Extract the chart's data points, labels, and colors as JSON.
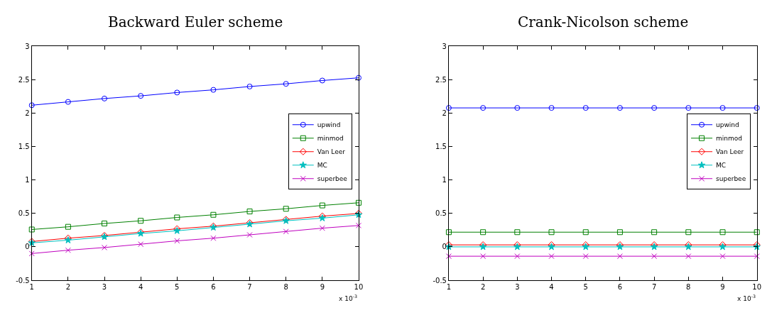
{
  "chart_data": [
    {
      "type": "line",
      "title": "Backward Euler scheme",
      "x": [
        1,
        2,
        3,
        4,
        5,
        6,
        7,
        8,
        9,
        10
      ],
      "xlim": [
        1,
        10
      ],
      "xticks": [
        1,
        2,
        3,
        4,
        5,
        6,
        7,
        8,
        9,
        10
      ],
      "ylim": [
        -0.5,
        3
      ],
      "yticks": [
        -0.5,
        0,
        0.5,
        1,
        1.5,
        2,
        2.5,
        3
      ],
      "grid": false,
      "legend": "right",
      "annotations": [
        "x 10$^{-3}$"
      ],
      "series": [
        {
          "name": "upwind",
          "color": "#0000ff",
          "marker": "circle",
          "values": [
            2.12,
            2.17,
            2.22,
            2.26,
            2.31,
            2.35,
            2.4,
            2.44,
            2.49,
            2.53
          ]
        },
        {
          "name": "minmod",
          "color": "#008000",
          "marker": "square",
          "values": [
            0.26,
            0.3,
            0.35,
            0.39,
            0.44,
            0.48,
            0.53,
            0.57,
            0.62,
            0.66
          ]
        },
        {
          "name": "Van Leer",
          "color": "#ff0000",
          "marker": "diamond",
          "values": [
            0.08,
            0.13,
            0.17,
            0.22,
            0.27,
            0.31,
            0.36,
            0.41,
            0.46,
            0.5
          ]
        },
        {
          "name": "MC",
          "color": "#00bfbf",
          "marker": "star",
          "values": [
            0.06,
            0.1,
            0.15,
            0.2,
            0.24,
            0.29,
            0.34,
            0.39,
            0.43,
            0.48
          ]
        },
        {
          "name": "superbee",
          "color": "#bf00bf",
          "marker": "cross",
          "values": [
            -0.1,
            -0.05,
            -0.01,
            0.04,
            0.09,
            0.13,
            0.18,
            0.23,
            0.28,
            0.32
          ]
        }
      ]
    },
    {
      "type": "line",
      "title": "Crank-Nicolson scheme",
      "x": [
        1,
        2,
        3,
        4,
        5,
        6,
        7,
        8,
        9,
        10
      ],
      "xlim": [
        1,
        10
      ],
      "xticks": [
        1,
        2,
        3,
        4,
        5,
        6,
        7,
        8,
        9,
        10
      ],
      "ylim": [
        -0.5,
        3
      ],
      "yticks": [
        -0.5,
        0,
        0.5,
        1,
        1.5,
        2,
        2.5,
        3
      ],
      "grid": false,
      "legend": "right",
      "annotations": [
        "x 10$^{-3}$"
      ],
      "series": [
        {
          "name": "upwind",
          "color": "#0000ff",
          "marker": "circle",
          "values": [
            2.08,
            2.08,
            2.08,
            2.08,
            2.08,
            2.08,
            2.08,
            2.08,
            2.08,
            2.08
          ]
        },
        {
          "name": "minmod",
          "color": "#008000",
          "marker": "square",
          "values": [
            0.22,
            0.22,
            0.22,
            0.22,
            0.22,
            0.22,
            0.22,
            0.22,
            0.22,
            0.22
          ]
        },
        {
          "name": "Van Leer",
          "color": "#ff0000",
          "marker": "diamond",
          "values": [
            0.03,
            0.03,
            0.03,
            0.03,
            0.03,
            0.03,
            0.03,
            0.03,
            0.03,
            0.03
          ]
        },
        {
          "name": "MC",
          "color": "#00bfbf",
          "marker": "star",
          "values": [
            0.0,
            0.0,
            0.0,
            0.0,
            0.0,
            0.0,
            0.0,
            0.0,
            0.0,
            0.0
          ]
        },
        {
          "name": "superbee",
          "color": "#bf00bf",
          "marker": "cross",
          "values": [
            -0.14,
            -0.14,
            -0.14,
            -0.14,
            -0.14,
            -0.14,
            -0.14,
            -0.14,
            -0.14,
            -0.14
          ]
        }
      ]
    }
  ]
}
